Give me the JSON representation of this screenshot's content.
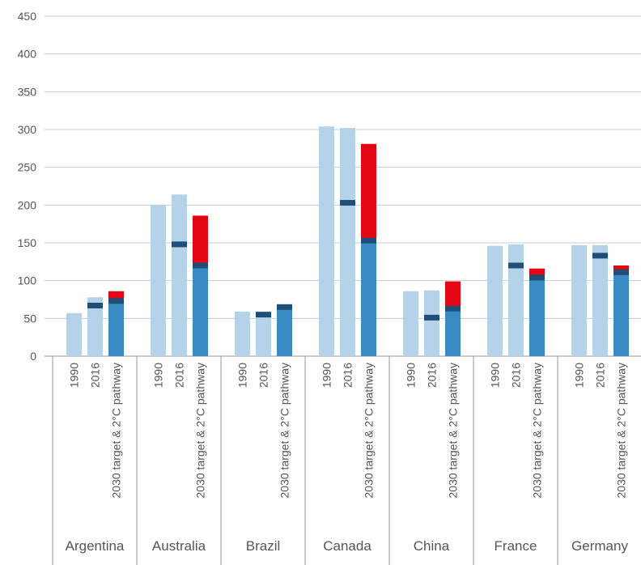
{
  "chart_data": {
    "type": "bar",
    "ylim": [
      0,
      450
    ],
    "yticks": [
      0,
      50,
      100,
      150,
      200,
      250,
      300,
      350,
      400,
      450
    ],
    "grid": true,
    "bar_labels": [
      "1990",
      "2016",
      "2030 target & 2°C pathway"
    ],
    "colors": {
      "historic": "#b4d3e8",
      "pathway": "#3a8ac4",
      "gap": "#e30613",
      "marker": "#1f4e79",
      "grid": "#cccccc",
      "axis": "#999999"
    },
    "groups": [
      {
        "country": "Argentina",
        "v1990": 57,
        "v2016": 78,
        "m2016": 67,
        "pathway": 70,
        "target": 86,
        "mt": 73
      },
      {
        "country": "Australia",
        "v1990": 200,
        "v2016": 214,
        "m2016": 148,
        "pathway": 120,
        "target": 186,
        "mt": 120
      },
      {
        "country": "Brazil",
        "v1990": 59,
        "v2016": 52,
        "m2016": 55,
        "pathway": 65,
        "target": 68,
        "mt": 65
      },
      {
        "country": "Canada",
        "v1990": 304,
        "v2016": 302,
        "m2016": 203,
        "pathway": 153,
        "target": 281,
        "mt": 153
      },
      {
        "country": "China",
        "v1990": 86,
        "v2016": 87,
        "m2016": 51,
        "pathway": 63,
        "target": 99,
        "mt": 63
      },
      {
        "country": "France",
        "v1990": 146,
        "v2016": 148,
        "m2016": 120,
        "pathway": 104,
        "target": 116,
        "mt": 104
      },
      {
        "country": "Germany",
        "v1990": 147,
        "v2016": 147,
        "m2016": 133,
        "pathway": 111,
        "target": 120,
        "mt": 111
      }
    ]
  }
}
